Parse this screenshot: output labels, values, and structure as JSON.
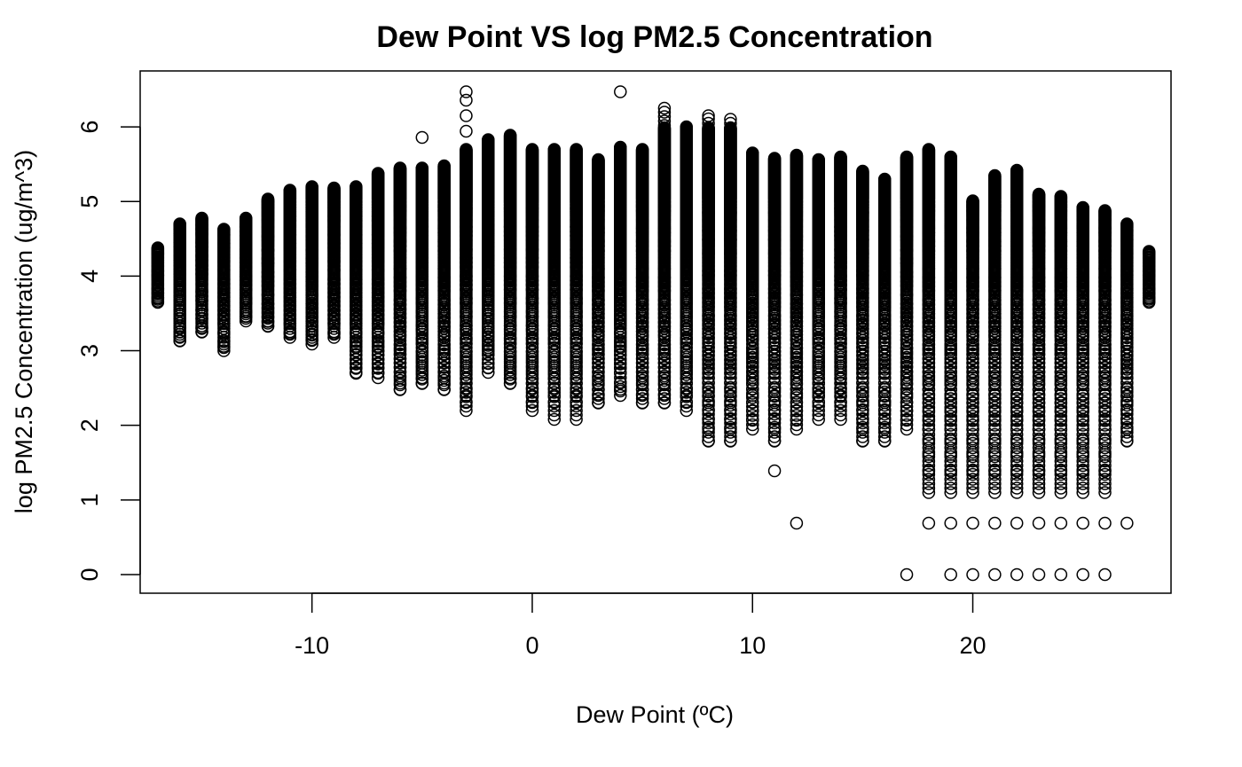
{
  "chart_data": {
    "type": "scatter",
    "title": "Dew Point VS log PM2.5 Concentration",
    "xlabel": "Dew Point (ºC)",
    "ylabel": "log PM2.5 Concentration (ug/m^3)",
    "xlim": [
      -17.8,
      29.0
    ],
    "ylim": [
      -0.25,
      6.75
    ],
    "x_ticks": [
      -10,
      0,
      10,
      20
    ],
    "y_ticks": [
      0,
      1,
      2,
      3,
      4,
      5,
      6
    ],
    "x_tick_labels": [
      "-10",
      "0",
      "10",
      "20"
    ],
    "y_tick_labels": [
      "0",
      "1",
      "2",
      "3",
      "4",
      "5",
      "6"
    ],
    "grid": false,
    "legend": "none",
    "marker": "open-circle",
    "columns": [
      {
        "x": -17,
        "lo": 3.65,
        "hi": 4.38,
        "extra": []
      },
      {
        "x": -16,
        "lo": 3.13,
        "hi": 4.7,
        "extra": []
      },
      {
        "x": -15,
        "lo": 3.25,
        "hi": 4.78,
        "extra": []
      },
      {
        "x": -14,
        "lo": 3.0,
        "hi": 4.63,
        "extra": []
      },
      {
        "x": -13,
        "lo": 3.4,
        "hi": 4.78,
        "extra": []
      },
      {
        "x": -12,
        "lo": 3.33,
        "hi": 5.03,
        "extra": []
      },
      {
        "x": -11,
        "lo": 3.18,
        "hi": 5.15,
        "extra": []
      },
      {
        "x": -10,
        "lo": 3.09,
        "hi": 5.2,
        "extra": []
      },
      {
        "x": -9,
        "lo": 3.18,
        "hi": 5.18,
        "extra": []
      },
      {
        "x": -8,
        "lo": 2.7,
        "hi": 5.2,
        "extra": []
      },
      {
        "x": -7,
        "lo": 2.64,
        "hi": 5.38,
        "extra": []
      },
      {
        "x": -6,
        "lo": 2.48,
        "hi": 5.45,
        "extra": []
      },
      {
        "x": -5,
        "lo": 2.56,
        "hi": 5.45,
        "extra": [
          5.86
        ]
      },
      {
        "x": -4,
        "lo": 2.48,
        "hi": 5.48,
        "extra": []
      },
      {
        "x": -3,
        "lo": 2.2,
        "hi": 5.7,
        "extra": [
          5.94,
          6.15,
          6.36,
          6.47
        ]
      },
      {
        "x": -2,
        "lo": 2.71,
        "hi": 5.83,
        "extra": []
      },
      {
        "x": -1,
        "lo": 2.56,
        "hi": 5.89,
        "extra": []
      },
      {
        "x": 0,
        "lo": 2.2,
        "hi": 5.7,
        "extra": []
      },
      {
        "x": 1,
        "lo": 2.08,
        "hi": 5.7,
        "extra": []
      },
      {
        "x": 2,
        "lo": 2.08,
        "hi": 5.7,
        "extra": []
      },
      {
        "x": 3,
        "lo": 2.3,
        "hi": 5.56,
        "extra": []
      },
      {
        "x": 4,
        "lo": 2.4,
        "hi": 5.73,
        "extra": [
          6.47
        ]
      },
      {
        "x": 5,
        "lo": 2.3,
        "hi": 5.7,
        "extra": []
      },
      {
        "x": 6,
        "lo": 2.3,
        "hi": 6.25,
        "extra": []
      },
      {
        "x": 7,
        "lo": 2.2,
        "hi": 6.0,
        "extra": []
      },
      {
        "x": 8,
        "lo": 1.79,
        "hi": 6.15,
        "extra": []
      },
      {
        "x": 9,
        "lo": 1.79,
        "hi": 6.1,
        "extra": []
      },
      {
        "x": 10,
        "lo": 1.95,
        "hi": 5.65,
        "extra": []
      },
      {
        "x": 11,
        "lo": 1.79,
        "hi": 5.58,
        "extra": [
          1.39
        ]
      },
      {
        "x": 12,
        "lo": 1.95,
        "hi": 5.62,
        "extra": [
          0.69
        ]
      },
      {
        "x": 13,
        "lo": 2.08,
        "hi": 5.56,
        "extra": []
      },
      {
        "x": 14,
        "lo": 2.08,
        "hi": 5.6,
        "extra": []
      },
      {
        "x": 15,
        "lo": 1.79,
        "hi": 5.41,
        "extra": []
      },
      {
        "x": 16,
        "lo": 1.79,
        "hi": 5.3,
        "extra": []
      },
      {
        "x": 17,
        "lo": 1.95,
        "hi": 5.6,
        "extra": [
          0.0
        ]
      },
      {
        "x": 18,
        "lo": 1.1,
        "hi": 5.7,
        "extra": [
          0.69
        ]
      },
      {
        "x": 19,
        "lo": 1.1,
        "hi": 5.6,
        "extra": [
          0.69,
          0.0
        ]
      },
      {
        "x": 20,
        "lo": 1.1,
        "hi": 5.01,
        "extra": [
          0.69,
          0.0
        ]
      },
      {
        "x": 21,
        "lo": 1.1,
        "hi": 5.35,
        "extra": [
          0.69,
          0.0
        ]
      },
      {
        "x": 22,
        "lo": 1.1,
        "hi": 5.42,
        "extra": [
          0.69,
          0.0
        ]
      },
      {
        "x": 23,
        "lo": 1.1,
        "hi": 5.1,
        "extra": [
          0.69,
          0.0
        ]
      },
      {
        "x": 24,
        "lo": 1.1,
        "hi": 5.07,
        "extra": [
          0.69,
          0.0
        ]
      },
      {
        "x": 25,
        "lo": 1.1,
        "hi": 4.92,
        "extra": [
          0.69,
          0.0
        ]
      },
      {
        "x": 26,
        "lo": 1.1,
        "hi": 4.88,
        "extra": [
          0.69,
          0.0
        ]
      },
      {
        "x": 27,
        "lo": 1.79,
        "hi": 4.7,
        "extra": [
          0.69
        ]
      },
      {
        "x": 28,
        "lo": 3.65,
        "hi": 4.33,
        "extra": []
      }
    ]
  }
}
